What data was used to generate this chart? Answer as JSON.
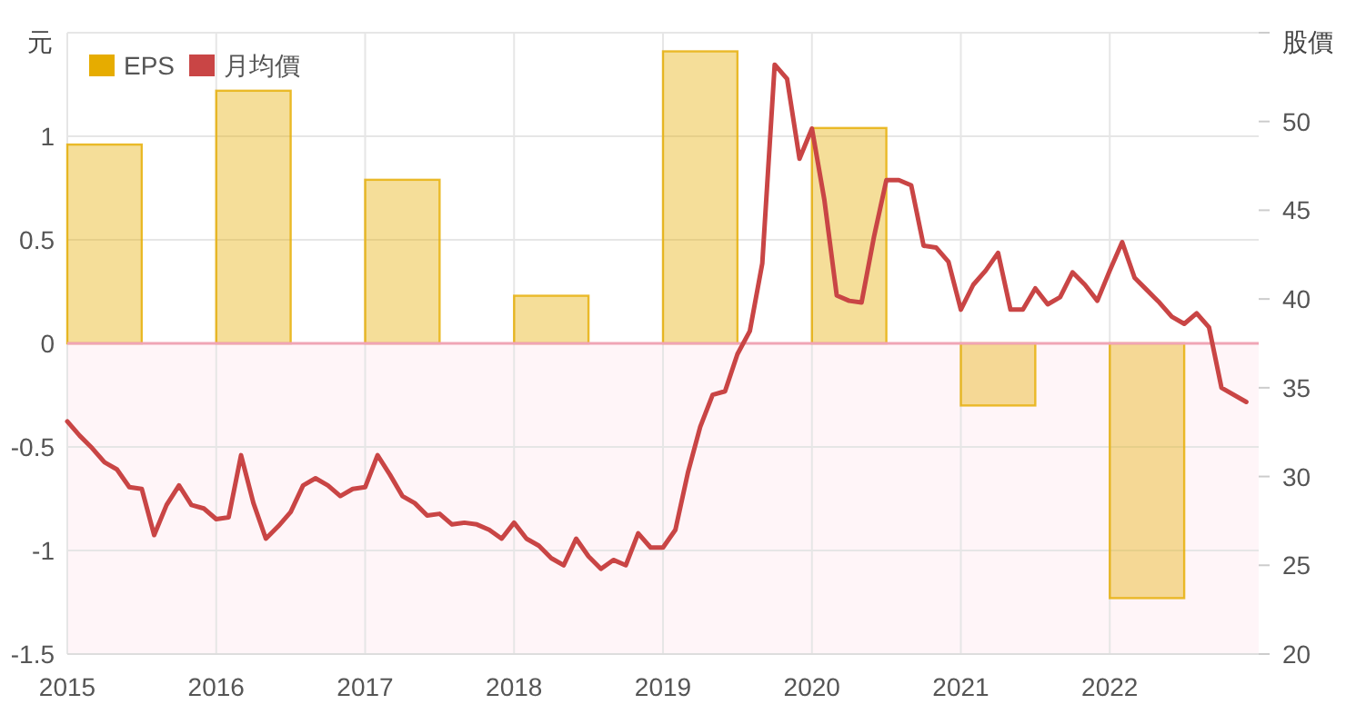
{
  "chart_data": {
    "type": "bar",
    "ylabel": "元",
    "y2label": "股價",
    "xlim": [
      "2015",
      "2023"
    ],
    "xticks": [
      "2015",
      "2016",
      "2017",
      "2018",
      "2019",
      "2020",
      "2021",
      "2022"
    ],
    "ylim": [
      -1.5,
      1.5
    ],
    "yticks": [
      -1.5,
      -1,
      -0.5,
      0,
      0.5,
      1,
      {
        "value": 1.5,
        "label": null
      }
    ],
    "y2lim": [
      20,
      55
    ],
    "y2ticks": [
      20,
      25,
      30,
      35,
      40,
      45,
      50,
      {
        "value": 55,
        "label": null
      }
    ],
    "grid": true,
    "legend": "top left",
    "bands": [
      {
        "axis": "y",
        "from": -1.5,
        "to": 0,
        "color": "#fff5f8"
      }
    ],
    "ref_lines": [
      {
        "axis": "y",
        "value": 0,
        "color": "#f0a5b5"
      }
    ],
    "series": [
      {
        "name": "EPS",
        "color": "#e6ac00",
        "x": [
          "2015-04",
          "2016-04",
          "2017-04",
          "2018-04",
          "2019-04",
          "2020-04",
          "2021-04",
          "2022-04"
        ],
        "values": [
          0.96,
          1.22,
          0.79,
          0.23,
          1.41,
          1.04,
          -0.3,
          -1.23
        ]
      },
      {
        "name": "月均價",
        "type": "line",
        "axis": "y2",
        "color": "#c94545",
        "x": [
          "2015-01",
          "2015-02",
          "2015-03",
          "2015-04",
          "2015-05",
          "2015-06",
          "2015-07",
          "2015-08",
          "2015-09",
          "2015-10",
          "2015-11",
          "2015-12",
          "2016-01",
          "2016-02",
          "2016-03",
          "2016-04",
          "2016-05",
          "2016-06",
          "2016-07",
          "2016-08",
          "2016-09",
          "2016-10",
          "2016-11",
          "2016-12",
          "2017-01",
          "2017-02",
          "2017-03",
          "2017-04",
          "2017-05",
          "2017-06",
          "2017-07",
          "2017-08",
          "2017-09",
          "2017-10",
          "2017-11",
          "2017-12",
          "2018-01",
          "2018-02",
          "2018-03",
          "2018-04",
          "2018-05",
          "2018-06",
          "2018-07",
          "2018-08",
          "2018-09",
          "2018-10",
          "2018-11",
          "2018-12",
          "2019-01",
          "2019-02",
          "2019-03",
          "2019-04",
          "2019-05",
          "2019-06",
          "2019-07",
          "2019-08",
          "2019-09",
          "2019-10",
          "2019-11",
          "2019-12",
          "2020-01",
          "2020-02",
          "2020-03",
          "2020-04",
          "2020-05",
          "2020-06",
          "2020-07",
          "2020-08",
          "2020-09",
          "2020-10",
          "2020-11",
          "2020-12",
          "2021-01",
          "2021-02",
          "2021-03",
          "2021-04",
          "2021-05",
          "2021-06",
          "2021-07",
          "2021-08",
          "2021-09",
          "2021-10",
          "2021-11",
          "2021-12",
          "2022-01",
          "2022-02",
          "2022-03",
          "2022-04",
          "2022-05",
          "2022-06",
          "2022-07",
          "2022-08",
          "2022-09",
          "2022-10",
          "2022-12"
        ],
        "values": [
          33.1,
          32.3,
          31.6,
          30.8,
          30.4,
          29.4,
          29.3,
          26.7,
          28.4,
          29.5,
          28.4,
          28.2,
          27.6,
          27.7,
          31.2,
          28.5,
          26.5,
          27.2,
          28.0,
          29.5,
          29.9,
          29.5,
          28.9,
          29.3,
          29.4,
          31.2,
          30.1,
          28.9,
          28.5,
          27.8,
          27.9,
          27.3,
          27.4,
          27.3,
          27.0,
          26.5,
          27.4,
          26.5,
          26.1,
          25.4,
          25.0,
          26.5,
          25.5,
          24.8,
          25.3,
          25.0,
          26.8,
          26.0,
          26.0,
          27.0,
          30.2,
          32.8,
          34.6,
          34.8,
          36.9,
          38.2,
          42.0,
          53.2,
          52.4,
          47.9,
          49.6,
          45.6,
          40.2,
          39.9,
          39.8,
          43.5,
          46.7,
          46.7,
          46.4,
          43.0,
          42.9,
          42.1,
          39.4,
          40.8,
          41.6,
          42.6,
          39.4,
          39.4,
          40.6,
          39.7,
          40.1,
          41.5,
          40.8,
          39.9,
          41.6,
          43.2,
          41.2,
          40.5,
          39.8,
          39.0,
          38.6,
          39.2,
          38.4,
          35.0,
          34.2
        ]
      }
    ]
  }
}
